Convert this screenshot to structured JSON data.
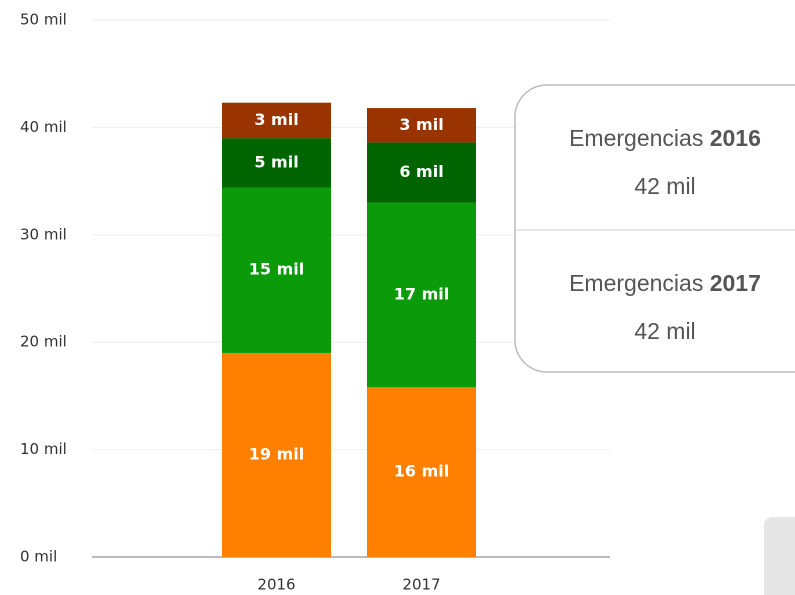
{
  "chart_data": {
    "type": "stacked_bar",
    "categories": [
      "2016",
      "2017"
    ],
    "series": [
      {
        "color": "#ff8000",
        "values": [
          19.0,
          15.8
        ],
        "value_labels": [
          "19 mil",
          "16 mil"
        ]
      },
      {
        "color": "#0a9a0a",
        "values": [
          15.4,
          17.2
        ],
        "value_labels": [
          "15 mil",
          "17 mil"
        ]
      },
      {
        "color": "#006400",
        "values": [
          4.6,
          5.6
        ],
        "value_labels": [
          "5 mil",
          "6 mil"
        ]
      },
      {
        "color": "#993300",
        "values": [
          3.3,
          3.2
        ],
        "value_labels": [
          "3 mil",
          "3 mil"
        ]
      }
    ],
    "ylim": [
      0,
      50
    ],
    "yticks": [
      {
        "value": 0,
        "label": "0 mil"
      },
      {
        "value": 10,
        "label": "10 mil"
      },
      {
        "value": 20,
        "label": "20 mil"
      },
      {
        "value": 30,
        "label": "30 mil"
      },
      {
        "value": 40,
        "label": "40 mil"
      },
      {
        "value": 50,
        "label": "50 mil"
      }
    ],
    "grid": true,
    "tooltip": [
      {
        "label": "Emergencias",
        "year": "2016",
        "value": "42 mil"
      },
      {
        "label": "Emergencias",
        "year": "2017",
        "value": "42 mil"
      }
    ]
  }
}
